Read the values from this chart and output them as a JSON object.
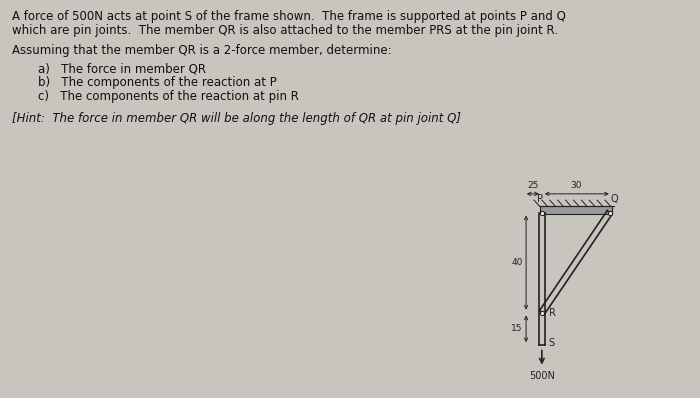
{
  "bg_color": "#c8c4be",
  "text_color": "#111111",
  "title_lines": [
    "A force of 500N acts at point S of the frame shown.  The frame is supported at points P and Q",
    "which are pin joints.  The member QR is also attached to the member PRS at the pin joint R."
  ],
  "para2": "Assuming that the member QR is a 2-force member, determine:",
  "items": [
    "a)   The force in member QR",
    "b)   The components of the reaction at P",
    "c)   The components of the reaction at pin R"
  ],
  "hint": "[Hint:  The force in member QR will be along the length of QR at pin joint Q]",
  "col": "#222222",
  "dim_25": "25",
  "dim_30": "30",
  "dim_40": "40",
  "dim_15": "15",
  "force_label": "500N",
  "labels": {
    "P": "P",
    "Q": "Q",
    "R": "R",
    "S": "S"
  }
}
